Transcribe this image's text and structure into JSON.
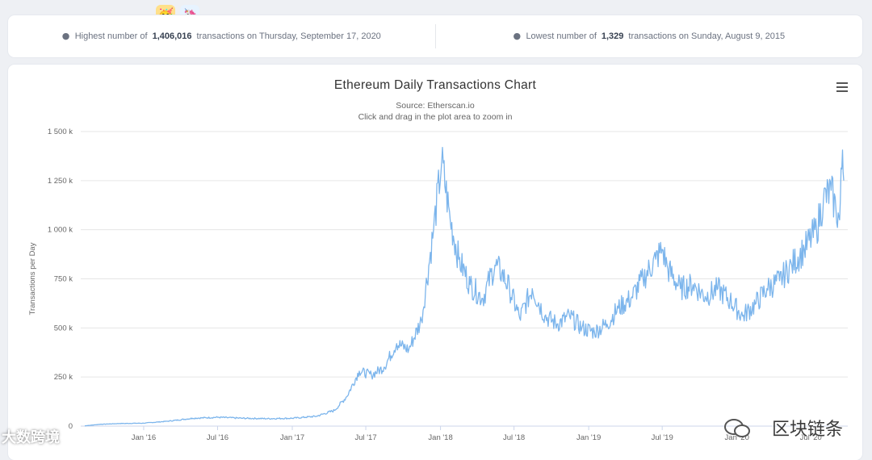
{
  "top_emojis": [
    "🥳",
    "🦄"
  ],
  "stats": {
    "highest": {
      "prefix": "Highest number of",
      "value": "1,406,016",
      "suffix": "transactions on Thursday, September 17, 2020"
    },
    "lowest": {
      "prefix": "Lowest number of",
      "value": "1,329",
      "suffix": "transactions on Sunday, August 9, 2015"
    }
  },
  "chart": {
    "title": "Ethereum Daily Transactions Chart",
    "source": "Source: Etherscan.io",
    "hint": "Click and drag in the plot area to zoom in"
  },
  "watermarks": {
    "left": "大数跨境",
    "right": "区块链条"
  },
  "colors": {
    "line": "#7cb5ec",
    "grid": "#e6e6e6"
  },
  "chart_data": {
    "type": "line",
    "title": "Ethereum Daily Transactions Chart",
    "subtitle": "Source: Etherscan.io",
    "xlabel": "",
    "ylabel": "Transactions per Day",
    "ylim": [
      0,
      1500000
    ],
    "yticks": [
      0,
      250000,
      500000,
      750000,
      1000000,
      1250000,
      1500000
    ],
    "ytick_labels": [
      "0",
      "250 k",
      "500 k",
      "750 k",
      "1 000 k",
      "1 250 k",
      "1 500 k"
    ],
    "xtick_labels": [
      "Jan '16",
      "Jul '16",
      "Jan '17",
      "Jul '17",
      "Jan '18",
      "Jul '18",
      "Jan '19",
      "Jul '19",
      "Jan '20",
      "Jul '20"
    ],
    "xtick_dates": [
      "2016-01-01",
      "2016-07-01",
      "2017-01-01",
      "2017-07-01",
      "2018-01-01",
      "2018-07-01",
      "2019-01-01",
      "2019-07-01",
      "2020-01-01",
      "2020-07-01"
    ],
    "grid": true,
    "legend": "none",
    "series": [
      {
        "points": [
          [
            "2015-08-09",
            1329
          ],
          [
            "2015-09-15",
            9000
          ],
          [
            "2015-11-01",
            13000
          ],
          [
            "2016-01-01",
            15000
          ],
          [
            "2016-03-01",
            25000
          ],
          [
            "2016-05-01",
            40000
          ],
          [
            "2016-07-01",
            45000
          ],
          [
            "2016-09-01",
            40000
          ],
          [
            "2016-11-01",
            38000
          ],
          [
            "2017-01-01",
            40000
          ],
          [
            "2017-03-01",
            50000
          ],
          [
            "2017-04-15",
            80000
          ],
          [
            "2017-05-15",
            150000
          ],
          [
            "2017-06-15",
            280000
          ],
          [
            "2017-07-15",
            260000
          ],
          [
            "2017-08-15",
            300000
          ],
          [
            "2017-09-15",
            420000
          ],
          [
            "2017-10-15",
            390000
          ],
          [
            "2017-11-15",
            540000
          ],
          [
            "2017-12-15",
            1000000
          ],
          [
            "2018-01-04",
            1349890
          ],
          [
            "2018-01-25",
            1050000
          ],
          [
            "2018-02-15",
            850000
          ],
          [
            "2018-03-15",
            720000
          ],
          [
            "2018-04-15",
            650000
          ],
          [
            "2018-05-15",
            820000
          ],
          [
            "2018-06-01",
            780000
          ],
          [
            "2018-06-20",
            700000
          ],
          [
            "2018-07-15",
            550000
          ],
          [
            "2018-08-15",
            700000
          ],
          [
            "2018-09-15",
            560000
          ],
          [
            "2018-10-15",
            520000
          ],
          [
            "2018-11-15",
            560000
          ],
          [
            "2018-12-15",
            500000
          ],
          [
            "2019-01-15",
            480000
          ],
          [
            "2019-02-15",
            520000
          ],
          [
            "2019-03-15",
            600000
          ],
          [
            "2019-04-15",
            650000
          ],
          [
            "2019-05-15",
            750000
          ],
          [
            "2019-06-15",
            850000
          ],
          [
            "2019-07-01",
            900000
          ],
          [
            "2019-07-15",
            800000
          ],
          [
            "2019-08-15",
            700000
          ],
          [
            "2019-09-15",
            720000
          ],
          [
            "2019-10-15",
            660000
          ],
          [
            "2019-11-15",
            700000
          ],
          [
            "2019-12-15",
            640000
          ],
          [
            "2020-01-15",
            560000
          ],
          [
            "2020-02-15",
            620000
          ],
          [
            "2020-03-15",
            700000
          ],
          [
            "2020-04-15",
            740000
          ],
          [
            "2020-05-15",
            820000
          ],
          [
            "2020-06-15",
            900000
          ],
          [
            "2020-07-15",
            1000000
          ],
          [
            "2020-08-01",
            1150000
          ],
          [
            "2020-08-20",
            1200000
          ],
          [
            "2020-09-01",
            1100000
          ],
          [
            "2020-09-10",
            1050000
          ],
          [
            "2020-09-17",
            1406016
          ],
          [
            "2020-09-20",
            1250000
          ]
        ]
      }
    ]
  }
}
